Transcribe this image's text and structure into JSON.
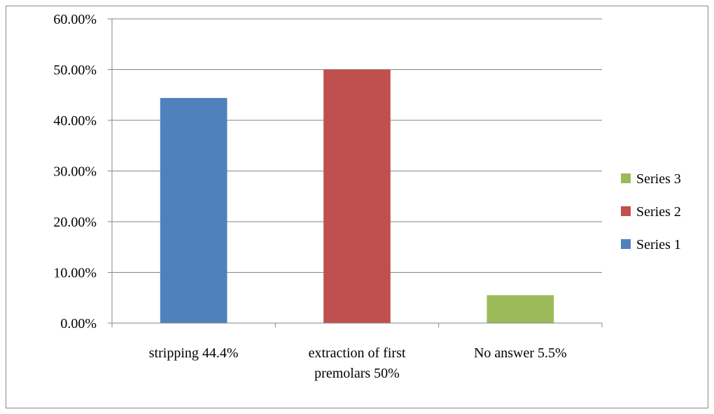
{
  "chart_data": {
    "type": "bar",
    "categories": [
      [
        "stripping 44.4%"
      ],
      [
        "extraction of   first",
        "premolars 50%"
      ],
      [
        "No answer 5.5%"
      ]
    ],
    "series": [
      {
        "name": "Series 1",
        "values": [
          0.444,
          null,
          null
        ],
        "color": "#4F81BD"
      },
      {
        "name": "Series 2",
        "values": [
          null,
          0.5,
          null
        ],
        "color": "#C0504D"
      },
      {
        "name": "Series 3",
        "values": [
          null,
          null,
          0.055
        ],
        "color": "#9BBB59"
      }
    ],
    "yticks": [
      "0.00%",
      "10.00%",
      "20.00%",
      "30.00%",
      "40.00%",
      "50.00%",
      "60.00%"
    ],
    "ylim": [
      0,
      0.6
    ],
    "grid": true,
    "legend": {
      "placement": "right",
      "order": [
        "Series 3",
        "Series 2",
        "Series 1"
      ]
    }
  }
}
